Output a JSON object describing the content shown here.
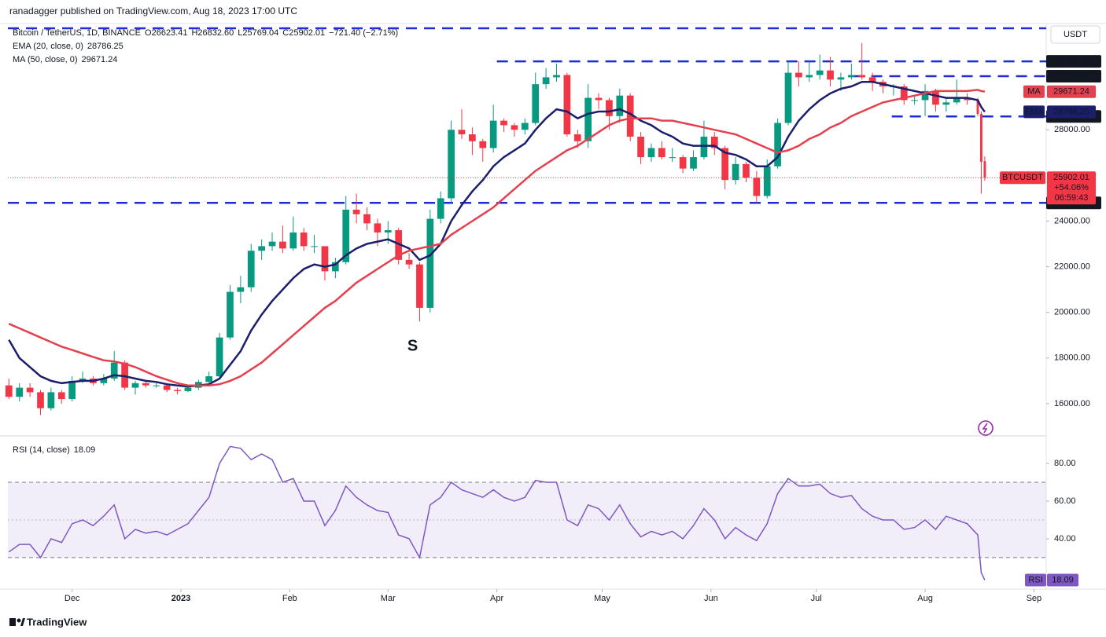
{
  "header": {
    "author": "ranadagger published on TradingView.com, Aug 18, 2023 17:00 UTC"
  },
  "footer": {
    "brand": "TradingView"
  },
  "chart_data": [
    {
      "type": "candlestick",
      "title": "Bitcoin / TetherUS, 1D, BINANCE",
      "ohlc_legend": [
        "O26623.41",
        "H26832.60",
        "L25769.04",
        "C25902.01",
        "−721.40 (−2.71%)"
      ],
      "currency": "USDT",
      "symbol": "BTCUSDT",
      "last_value": "25902.01",
      "change": "+54.06%",
      "countdown": "06:59:43",
      "up_color": "#089981",
      "down_color": "#f23645",
      "x": [
        0,
        3,
        6,
        9,
        12,
        15,
        18,
        21,
        24,
        27,
        30,
        33,
        36,
        39,
        42,
        45,
        48,
        51,
        54,
        57,
        60,
        63,
        66,
        69,
        72,
        75,
        78,
        81,
        84,
        87,
        90,
        93,
        96,
        99,
        102,
        105,
        108,
        111,
        114,
        117,
        120,
        123,
        126,
        129,
        132,
        135,
        138,
        141,
        144,
        147,
        150,
        153,
        156,
        159,
        162,
        165,
        168,
        171,
        174,
        177,
        180,
        183,
        186,
        189,
        192,
        195,
        198,
        201,
        204,
        207,
        210,
        213,
        216,
        219,
        222,
        225,
        228,
        231,
        234,
        237,
        240,
        243,
        246,
        249,
        252,
        255,
        258,
        261,
        264,
        267,
        270,
        273,
        276,
        277,
        278
      ],
      "open": [
        16800,
        16300,
        16700,
        16500,
        15800,
        16500,
        16200,
        17000,
        17100,
        16900,
        17100,
        17800,
        16700,
        16900,
        16800,
        16800,
        16600,
        16550,
        16700,
        16950,
        17200,
        18900,
        20900,
        21100,
        22700,
        22900,
        23100,
        22800,
        23500,
        22900,
        22900,
        21800,
        22200,
        24500,
        24300,
        23900,
        23500,
        23600,
        22300,
        22100,
        20200,
        24100,
        25000,
        28000,
        27800,
        27500,
        27200,
        28400,
        28200,
        28000,
        28300,
        30000,
        30300,
        30400,
        27800,
        27500,
        29400,
        29300,
        28600,
        29500,
        27700,
        26800,
        27200,
        26800,
        26800,
        26300,
        26800,
        27700,
        27200,
        25800,
        26500,
        25900,
        25100,
        26400,
        28300,
        30500,
        30300,
        30400,
        30600,
        30200,
        30300,
        30400,
        30300,
        30100,
        29900,
        29900,
        29300,
        29300,
        29700,
        29100,
        29200,
        29400,
        29300,
        28700,
        26623.41
      ],
      "high": [
        17100,
        16900,
        16900,
        16600,
        16700,
        16600,
        17200,
        17400,
        17200,
        17300,
        18300,
        17900,
        17000,
        17000,
        16900,
        16900,
        16700,
        16800,
        17050,
        17400,
        19100,
        21200,
        21600,
        23000,
        23200,
        23500,
        23800,
        24200,
        23700,
        23400,
        22900,
        22400,
        25100,
        25200,
        24600,
        24100,
        24000,
        23700,
        22600,
        22200,
        24500,
        25300,
        28400,
        28900,
        28100,
        27600,
        29100,
        28500,
        28300,
        28500,
        30500,
        30700,
        30900,
        30500,
        28000,
        30000,
        29600,
        29400,
        29800,
        29600,
        27900,
        27400,
        27500,
        27200,
        26900,
        27100,
        28400,
        27900,
        27300,
        26800,
        26600,
        26200,
        26700,
        28500,
        31000,
        31000,
        31000,
        31300,
        31200,
        30500,
        30900,
        31800,
        30500,
        30200,
        30000,
        30000,
        29500,
        30000,
        29800,
        29400,
        30200,
        29600,
        29400,
        28800,
        26832.6
      ],
      "low": [
        16200,
        16100,
        16300,
        15500,
        15700,
        16000,
        16100,
        16900,
        16800,
        16800,
        17000,
        16600,
        16400,
        16700,
        16700,
        16500,
        16400,
        16500,
        16600,
        16900,
        17100,
        18800,
        20400,
        20900,
        22300,
        22700,
        22600,
        22700,
        22700,
        22600,
        21400,
        21500,
        22100,
        23900,
        23600,
        22900,
        23000,
        22100,
        21900,
        19600,
        20000,
        23900,
        24800,
        27600,
        26900,
        26600,
        27000,
        27900,
        27700,
        27800,
        28200,
        29800,
        30100,
        27700,
        27200,
        27200,
        28900,
        28000,
        28300,
        27500,
        26500,
        26600,
        26700,
        26600,
        26100,
        26200,
        26700,
        26900,
        25400,
        25600,
        25700,
        24800,
        25000,
        26300,
        28200,
        29900,
        30100,
        30200,
        29900,
        29700,
        30200,
        30200,
        29700,
        29600,
        29500,
        29100,
        29100,
        28600,
        28800,
        28800,
        29100,
        29100,
        28600,
        25200,
        25769.04
      ],
      "close": [
        16300,
        16700,
        16500,
        15800,
        16500,
        16200,
        17000,
        17100,
        16900,
        17100,
        17800,
        16700,
        16900,
        16800,
        16800,
        16600,
        16550,
        16700,
        16950,
        17200,
        18900,
        20900,
        21100,
        22700,
        22900,
        23100,
        22800,
        23500,
        22900,
        22900,
        21800,
        22200,
        24500,
        24300,
        23900,
        23500,
        23600,
        22300,
        22100,
        20200,
        24100,
        25000,
        28000,
        27800,
        27500,
        27200,
        28400,
        28200,
        28000,
        28300,
        30000,
        30300,
        30400,
        27800,
        27500,
        29400,
        29300,
        28600,
        29500,
        27700,
        26800,
        27200,
        26800,
        26800,
        26300,
        26800,
        27700,
        27200,
        25800,
        26500,
        25900,
        25100,
        26400,
        28300,
        30500,
        30300,
        30400,
        30600,
        30200,
        30300,
        30400,
        30300,
        30100,
        29900,
        29900,
        29300,
        29300,
        29700,
        29100,
        29200,
        29400,
        29300,
        28700,
        26600,
        25902.01
      ],
      "series": [
        {
          "name": "EMA (20, close, 0)",
          "tag": "EMA",
          "value_label": "28786.25",
          "color": "#1b1f6b",
          "values": [
            18800,
            18000,
            17600,
            17200,
            17000,
            16900,
            16950,
            17000,
            17000,
            17100,
            17250,
            17200,
            17100,
            17000,
            16950,
            16850,
            16800,
            16750,
            16800,
            16850,
            17100,
            17700,
            18300,
            19200,
            19900,
            20500,
            21000,
            21500,
            21900,
            22100,
            22000,
            22100,
            22500,
            22800,
            23000,
            23100,
            23200,
            23000,
            22800,
            22300,
            22500,
            23000,
            24000,
            24700,
            25300,
            25800,
            26400,
            26800,
            27100,
            27400,
            28000,
            28500,
            28900,
            28800,
            28500,
            28700,
            28800,
            28800,
            28900,
            28700,
            28400,
            28200,
            27900,
            27700,
            27400,
            27300,
            27300,
            27300,
            27000,
            26900,
            26700,
            26400,
            26400,
            26800,
            27700,
            28400,
            28900,
            29300,
            29600,
            29800,
            29900,
            30100,
            30100,
            30000,
            29900,
            29800,
            29700,
            29600,
            29500,
            29400,
            29400,
            29400,
            29300,
            29000,
            28786.25
          ]
        },
        {
          "name": "MA (50, close, 0)",
          "tag": "MA",
          "value_label": "29671.24",
          "color": "#e5404e",
          "values": [
            19500,
            19300,
            19100,
            18900,
            18700,
            18500,
            18350,
            18200,
            18050,
            17900,
            17850,
            17750,
            17600,
            17400,
            17200,
            17050,
            16900,
            16800,
            16800,
            16800,
            16850,
            17000,
            17200,
            17500,
            17800,
            18200,
            18600,
            19000,
            19400,
            19800,
            20200,
            20500,
            20900,
            21300,
            21600,
            21900,
            22200,
            22500,
            22700,
            22800,
            22900,
            23000,
            23400,
            23700,
            24000,
            24300,
            24600,
            25000,
            25400,
            25800,
            26200,
            26500,
            26800,
            27100,
            27300,
            27600,
            27900,
            28200,
            28400,
            28500,
            28500,
            28500,
            28400,
            28400,
            28300,
            28200,
            28100,
            28000,
            27900,
            27800,
            27600,
            27400,
            27200,
            27000,
            27100,
            27300,
            27600,
            27800,
            28100,
            28300,
            28600,
            28800,
            29000,
            29200,
            29300,
            29400,
            29500,
            29600,
            29700,
            29700,
            29700,
            29700,
            29750,
            29700,
            29671.24
          ]
        }
      ],
      "xlim": [
        -0.3,
        295.5
      ],
      "xticks": [
        {
          "value": 18,
          "label": "Dec"
        },
        {
          "value": 49,
          "label": "2023"
        },
        {
          "value": 80,
          "label": "Feb"
        },
        {
          "value": 108,
          "label": "Mar"
        },
        {
          "value": 139,
          "label": "Apr"
        },
        {
          "value": 169,
          "label": "May"
        },
        {
          "value": 200,
          "label": "Jun"
        },
        {
          "value": 230,
          "label": "Jul"
        },
        {
          "value": 261,
          "label": "Aug"
        },
        {
          "value": 292,
          "label": "Sep"
        }
      ],
      "ylim": [
        14586,
        32655
      ],
      "yticks": [
        {
          "value": 16000,
          "label": "16000.00"
        },
        {
          "value": 18000,
          "label": "18000.00"
        },
        {
          "value": 20000,
          "label": "20000.00"
        },
        {
          "value": 22000,
          "label": "22000.00"
        },
        {
          "value": 24000,
          "label": "24000.00"
        },
        {
          "value": 28000,
          "label": "28000.00"
        }
      ],
      "levels": [
        {
          "value": 32450,
          "start": -0.3
        },
        {
          "value": 31000,
          "label": "31000.00",
          "start": 139
        },
        {
          "value": 30350,
          "label": "30350.00",
          "start": 240.5
        },
        {
          "value": 28585,
          "label": "28585.00",
          "start": 251.5
        },
        {
          "value": 24800,
          "label": "24800.00",
          "start": -0.3
        }
      ],
      "level_color": "#1e2bd8",
      "annotations": [
        {
          "text": "S",
          "x": 115,
          "y": 18500,
          "color": "#138f7e"
        }
      ]
    },
    {
      "type": "line",
      "title": "RSI (14, close)",
      "tag": "RSI",
      "value_label": "18.09",
      "color": "#7e57c2",
      "x": [
        0,
        3,
        6,
        9,
        12,
        15,
        18,
        21,
        24,
        27,
        30,
        33,
        36,
        39,
        42,
        45,
        48,
        51,
        54,
        57,
        60,
        63,
        66,
        69,
        72,
        75,
        78,
        81,
        84,
        87,
        90,
        93,
        96,
        99,
        102,
        105,
        108,
        111,
        114,
        117,
        120,
        123,
        126,
        129,
        132,
        135,
        138,
        141,
        144,
        147,
        150,
        153,
        156,
        159,
        162,
        165,
        168,
        171,
        174,
        177,
        180,
        183,
        186,
        189,
        192,
        195,
        198,
        201,
        204,
        207,
        210,
        213,
        216,
        219,
        222,
        225,
        228,
        231,
        234,
        237,
        240,
        243,
        246,
        249,
        252,
        255,
        258,
        261,
        264,
        267,
        270,
        273,
        276,
        277,
        278
      ],
      "values": [
        33,
        37,
        37,
        30,
        40,
        38,
        48,
        50,
        47,
        52,
        58,
        40,
        45,
        43,
        44,
        42,
        45,
        48,
        55,
        62,
        80,
        89,
        88,
        82,
        85,
        82,
        70,
        72,
        60,
        60,
        47,
        55,
        68,
        62,
        58,
        55,
        54,
        42,
        40,
        30,
        58,
        62,
        70,
        66,
        64,
        62,
        66,
        62,
        60,
        62,
        71,
        70,
        70,
        50,
        47,
        58,
        56,
        50,
        58,
        48,
        41,
        44,
        42,
        44,
        40,
        47,
        56,
        50,
        40,
        46,
        42,
        39,
        48,
        64,
        72,
        68,
        68,
        69,
        64,
        62,
        63,
        56,
        52,
        50,
        50,
        45,
        46,
        50,
        45,
        52,
        50,
        48,
        42,
        22,
        18.09
      ],
      "ylim": [
        13.3,
        92.5
      ],
      "yticks": [
        {
          "value": 40,
          "label": "40.00"
        },
        {
          "value": 60,
          "label": "60.00"
        },
        {
          "value": 80,
          "label": "80.00"
        }
      ],
      "band": [
        30,
        70
      ],
      "midline": 50
    }
  ]
}
